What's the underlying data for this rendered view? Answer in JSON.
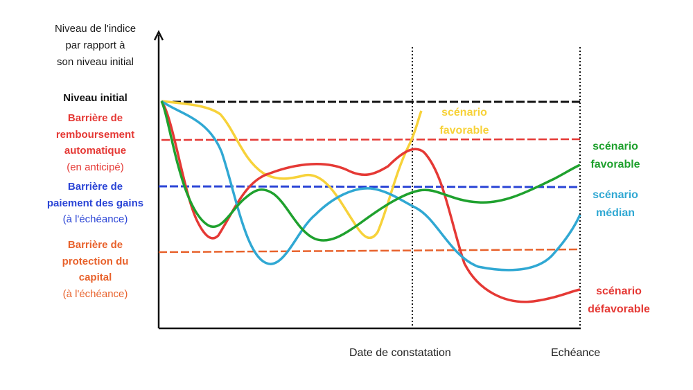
{
  "y_axis_title": [
    "Niveau de l'indice",
    "par rapport à",
    "son niveau initial"
  ],
  "levels": {
    "initial": {
      "label": "Niveau initial",
      "color": "#111111"
    },
    "auto_redemption": {
      "title": [
        "Barrière de",
        "remboursement",
        "automatique"
      ],
      "subtitle": "(en anticipé)",
      "color": "#e53935"
    },
    "gains_payment": {
      "title": [
        "Barrière de",
        "paiement des gains"
      ],
      "subtitle": "(à l'échéance)",
      "color": "#2b45d6"
    },
    "capital_protection": {
      "title": [
        "Barrière de",
        "protection du",
        "capital"
      ],
      "subtitle": "(à l'échéance)",
      "color": "#e8622c"
    }
  },
  "x_ticks": {
    "observation_date": "Date de constatation",
    "maturity": "Echéance"
  },
  "scenarios": {
    "favorable_early": {
      "label": [
        "scénario",
        "favorable"
      ],
      "color": "#f7d23a"
    },
    "favorable": {
      "label": [
        "scénario",
        "favorable"
      ],
      "color": "#1fa12e"
    },
    "median": {
      "label": [
        "scénario",
        "médian"
      ],
      "color": "#30a8d3"
    },
    "unfavorable": {
      "label": [
        "scénario",
        "défavorable"
      ],
      "color": "#e53935"
    }
  }
}
